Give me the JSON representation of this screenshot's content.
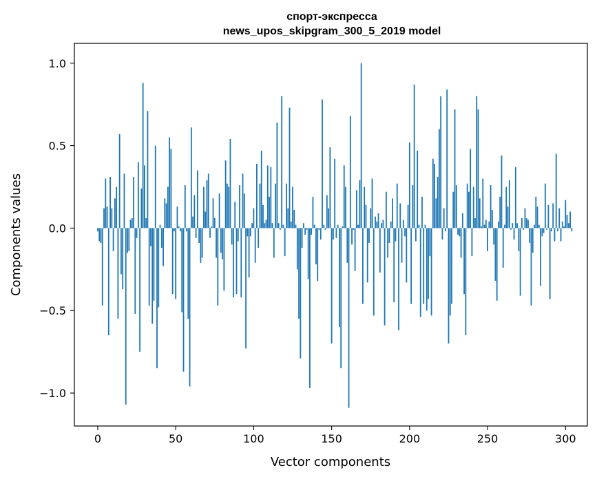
{
  "chart_data": {
    "type": "bar",
    "title": "спорт-экспресса",
    "subtitle": "news_upos_skipgram_300_5_2019 model",
    "xlabel": "Vector components",
    "ylabel": "Components values",
    "xlim": [
      -15,
      314
    ],
    "ylim": [
      -1.2,
      1.12
    ],
    "xticks": [
      0,
      50,
      100,
      150,
      200,
      250,
      300
    ],
    "xtick_labels": [
      "0",
      "50",
      "100",
      "150",
      "200",
      "250",
      "300"
    ],
    "yticks": [
      -1.0,
      -0.5,
      0.0,
      0.5,
      1.0
    ],
    "ytick_labels": [
      "−1.0",
      "−0.5",
      "0.0",
      "0.5",
      "1.0"
    ],
    "bar_color": "#1f77b4",
    "grid": false,
    "values": [
      -0.02,
      -0.08,
      -0.09,
      -0.47,
      0.12,
      0.3,
      0.13,
      -0.65,
      0.31,
      0.12,
      -0.14,
      0.18,
      0.25,
      -0.55,
      0.57,
      -0.28,
      -0.37,
      0.33,
      -1.07,
      -0.15,
      -0.14,
      0.05,
      0.06,
      0.31,
      -0.52,
      -0.06,
      0.4,
      -0.75,
      0.24,
      0.88,
      0.38,
      0.06,
      0.71,
      -0.47,
      -0.11,
      -0.58,
      -0.44,
      0.5,
      -0.85,
      -0.48,
      0.02,
      -0.12,
      -0.23,
      0.18,
      0.15,
      0.25,
      0.55,
      0.48,
      -0.4,
      -0.02,
      -0.43,
      0.13,
      0.01,
      -0.02,
      -0.51,
      -0.87,
      0.26,
      -0.02,
      -0.55,
      -0.96,
      0.61,
      0.07,
      0.2,
      -0.06,
      0.35,
      -0.09,
      -0.21,
      -0.18,
      0.25,
      0.1,
      0.29,
      0.33,
      -0.06,
      0.01,
      0.18,
      0.06,
      -0.18,
      -0.47,
      0.21,
      -0.15,
      -0.19,
      -0.38,
      0.41,
      0.27,
      0.25,
      0.54,
      -0.1,
      -0.42,
      0.16,
      -0.4,
      -0.08,
      0.26,
      -0.42,
      0.33,
      0.21,
      -0.73,
      -0.05,
      -0.3,
      -0.05,
      0.03,
      0.12,
      -0.21,
      0.39,
      -0.12,
      0.27,
      0.47,
      0.14,
      0.03,
      0.05,
      0.38,
      0.19,
      0.37,
      0.03,
      -0.18,
      0.27,
      0.64,
      0.03,
      -0.01,
      0.8,
      0.02,
      -0.17,
      0.27,
      0.12,
      0.73,
      0.04,
      0.25,
      0.11,
      0.02,
      -0.25,
      -0.55,
      -0.79,
      -0.12,
      0.03,
      -0.04,
      -0.01,
      -0.31,
      -0.97,
      -0.04,
      0.19,
      0.02,
      -0.22,
      -0.32,
      -0.01,
      -0.07,
      0.78,
      0.02,
      -0.01,
      0.2,
      0.12,
      0.49,
      -0.7,
      -0.07,
      0.42,
      -0.06,
      0.02,
      -0.6,
      -0.85,
      0.01,
      0.38,
      0.25,
      -0.21,
      -1.09,
      0.68,
      -0.1,
      -0.01,
      -0.26,
      0.23,
      0.02,
      0.29,
      1.0,
      -0.46,
      0.25,
      0.14,
      -0.33,
      -0.09,
      0.12,
      0.3,
      -0.53,
      0.07,
      0.04,
      0.09,
      -0.27,
      0.03,
      0.05,
      -0.59,
      0.22,
      -0.18,
      -0.09,
      0.04,
      0.18,
      -0.45,
      -0.08,
      0.27,
      -0.62,
      0.15,
      -0.21,
      0.05,
      -0.05,
      -0.33,
      0.14,
      0.52,
      -0.46,
      0.26,
      0.87,
      -0.08,
      0.47,
      0.02,
      -0.54,
      0.19,
      -0.46,
      0.02,
      -0.5,
      -0.43,
      -0.17,
      -0.53,
      0.42,
      0.39,
      0.18,
      0.31,
      0.6,
      0.8,
      -0.07,
      0.12,
      -0.02,
      0.84,
      -0.7,
      -0.53,
      -0.46,
      0.22,
      0.72,
      0.26,
      -0.04,
      -0.05,
      -0.18,
      0.09,
      -0.4,
      -0.65,
      0.27,
      0.22,
      0.48,
      -0.17,
      0.25,
      0.06,
      0.8,
      0.72,
      0.18,
      0.01,
      0.3,
      0.02,
      0.05,
      -0.14,
      0.04,
      0.26,
      0.11,
      -0.1,
      -0.32,
      -0.44,
      0.04,
      0.19,
      0.44,
      -0.24,
      0.02,
      0.25,
      0.13,
      0.29,
      -0.01,
      0.03,
      -0.07,
      0.37,
      0.03,
      -0.14,
      -0.41,
      0.06,
      -0.01,
      0.12,
      0.06,
      0.05,
      -0.09,
      -0.47,
      -0.15,
      0.02,
      0.19,
      0.13,
      0.02,
      -0.35,
      -0.05,
      -0.03,
      0.27,
      -0.01,
      0.14,
      -0.43,
      -0.02,
      0.15,
      -0.08,
      0.45,
      -0.02,
      0.12,
      -0.08,
      0.04,
      0.01,
      0.17,
      0.08,
      0.03,
      0.1,
      -0.02
    ]
  }
}
